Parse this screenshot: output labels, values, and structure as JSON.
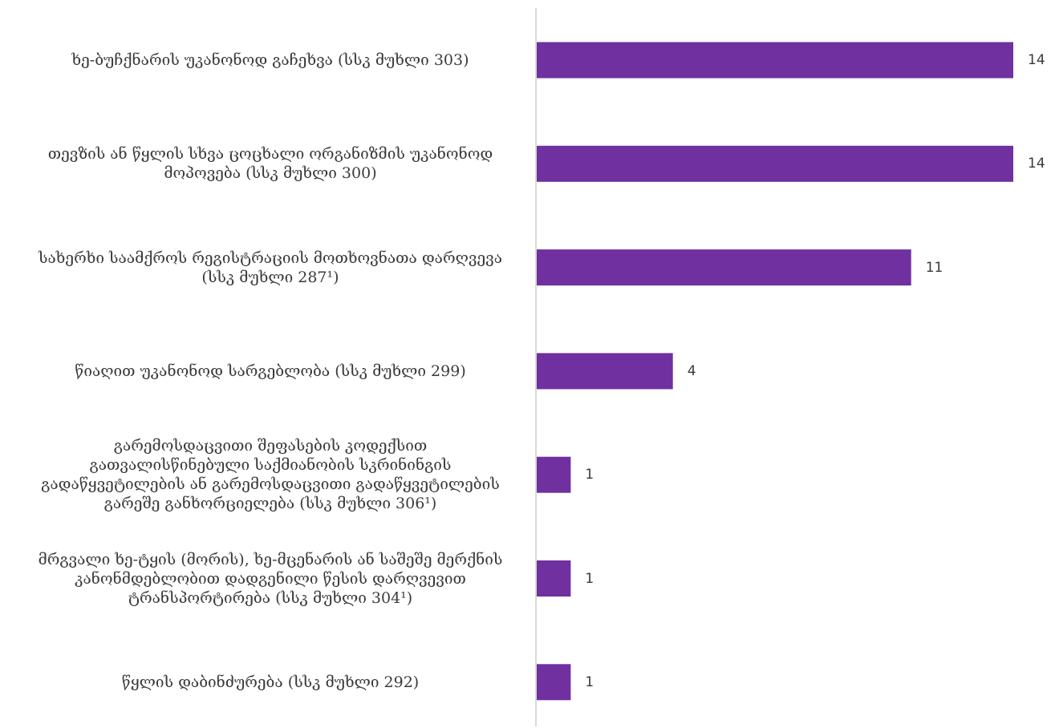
{
  "chart_data": {
    "type": "bar",
    "orientation": "horizontal",
    "categories": [
      "ხე-ბუჩქნარის უკანონოდ გაჩეხვა (სსკ მუხლი 303)",
      "თევზის ან წყლის სხვა ცოცხალი ორგანიზმის უკანონოდ მოპოვება (სსკ მუხლი 300)",
      "სახერხი საამქროს რეგისტრაციის მოთხოვნათა დარღვევა (სსკ მუხლი 287¹)",
      "წიაღით უკანონოდ სარგებლობა (სსკ მუხლი 299)",
      "გარემოსდაცვითი შეფასების კოდექსით გათვალისწინებული საქმიანობის სკრინინგის გადაწყვეტილების ან გარემოსდაცვითი გადაწყვეტილების გარეშე განხორციელება (სსკ მუხლი 306¹)",
      "მრგვალი ხე-ტყის (მორის), ხე-მცენარის ან საშეშე მერქნის კანონმდებლობით დადგენილი წესის დარღვევით ტრანსპორტირება (სსკ მუხლი 304¹)",
      "წყლის დაბინძურება (სსკ  მუხლი 292)"
    ],
    "category_lines": [
      [
        "ხე-ბუჩქნარის უკანონოდ გაჩეხვა (სსკ მუხლი 303)"
      ],
      [
        "თევზის ან წყლის სხვა ცოცხალი ორგანიზმის უკანონოდ",
        "მოპოვება (სსკ მუხლი 300)"
      ],
      [
        "სახერხი საამქროს რეგისტრაციის მოთხოვნათა დარღვევა",
        "(სსკ მუხლი 287¹)"
      ],
      [
        "წიაღით უკანონოდ სარგებლობა (სსკ მუხლი 299)"
      ],
      [
        "გარემოსდაცვითი შეფასების კოდექსით",
        "გათვალისწინებული საქმიანობის სკრინინგის",
        "გადაწყვეტილების ან გარემოსდაცვითი გადაწყვეტილების",
        "გარეშე განხორციელება (სსკ მუხლი 306¹)"
      ],
      [
        "მრგვალი ხე-ტყის (მორის), ხე-მცენარის ან საშეშე მერქნის",
        "კანონმდებლობით დადგენილი წესის დარღვევით",
        "ტრანსპორტირება (სსკ მუხლი 304¹)"
      ],
      [
        "წყლის დაბინძურება (სსკ  მუხლი 292)"
      ]
    ],
    "values": [
      14,
      14,
      11,
      4,
      1,
      1,
      1
    ],
    "xlim": [
      0,
      14
    ],
    "grid": false,
    "legend": "none",
    "bar_color": "#7030a0",
    "axis_color": "#d9d9d9"
  }
}
